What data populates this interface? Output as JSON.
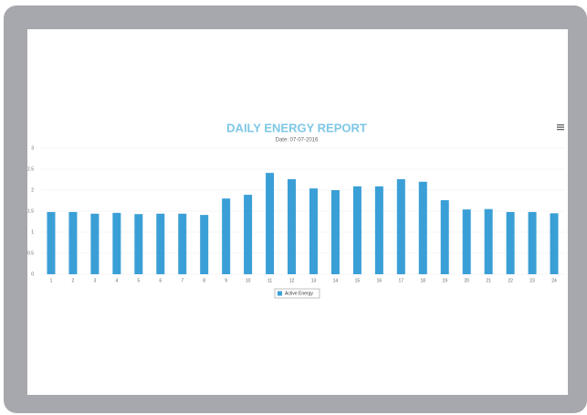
{
  "chart_data": {
    "type": "bar",
    "title": "DAILY ENERGY REPORT",
    "subtitle": "Date: 07-07-2016",
    "categories": [
      "1",
      "2",
      "3",
      "4",
      "5",
      "6",
      "7",
      "8",
      "9",
      "10",
      "11",
      "12",
      "13",
      "14",
      "15",
      "16",
      "17",
      "18",
      "19",
      "20",
      "21",
      "22",
      "23",
      "24"
    ],
    "series": [
      {
        "name": "Active Energy",
        "color": "#3a9fd6",
        "values": [
          1.48,
          1.48,
          1.44,
          1.46,
          1.43,
          1.44,
          1.44,
          1.41,
          1.8,
          1.89,
          2.41,
          2.26,
          2.04,
          2.0,
          2.09,
          2.09,
          2.26,
          2.2,
          1.76,
          1.54,
          1.55,
          1.48,
          1.48,
          1.45
        ]
      }
    ],
    "ylim": [
      0,
      3
    ],
    "yticks": [
      0,
      0.5,
      1,
      1.5,
      2,
      2.5,
      3
    ],
    "grid": true,
    "legend": "bottom"
  }
}
